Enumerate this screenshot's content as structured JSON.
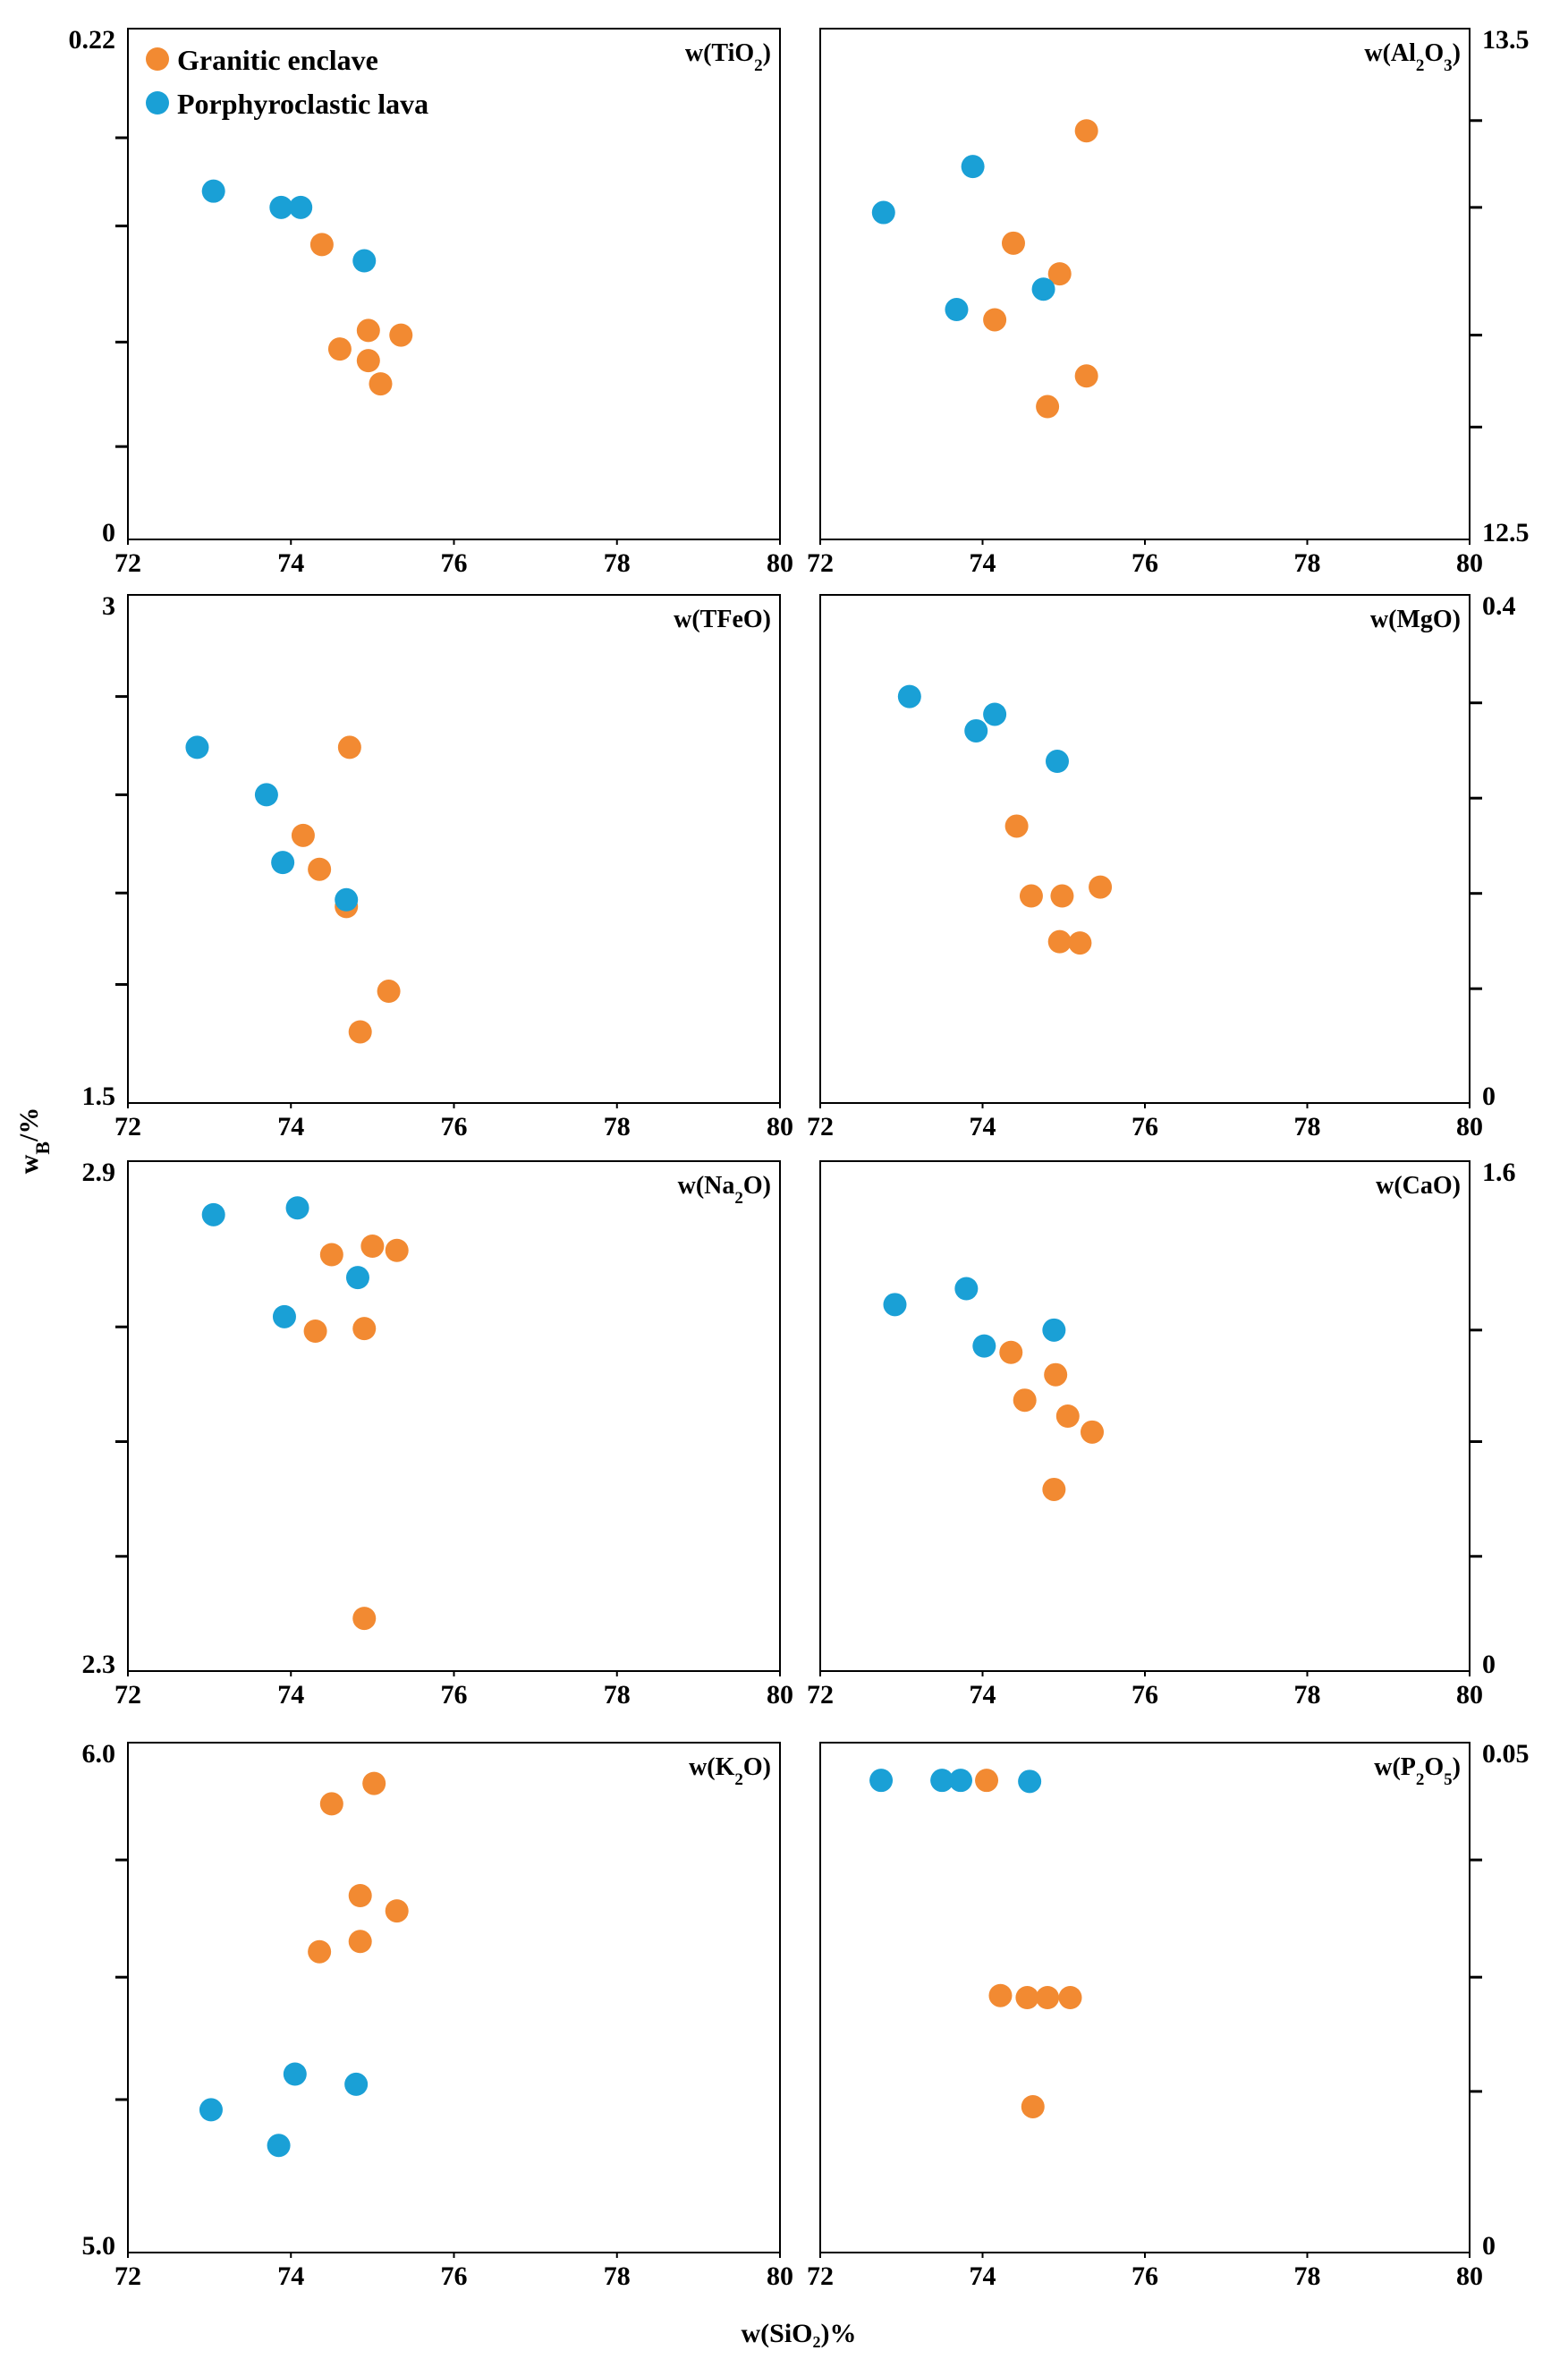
{
  "chart_data": {
    "type": "scatter",
    "title": "",
    "xlabel": "w(SiO₂)%",
    "ylabel": "w_B/%",
    "legend": {
      "placement": "top-left",
      "entries": [
        {
          "name": "Granitic enclave",
          "color": "#f28a32"
        },
        {
          "name": "Porphyroclastic lava",
          "color": "#1aa0d6"
        }
      ]
    },
    "colors": {
      "granitic": "#f28a32",
      "porphyroclastic": "#1aa0d6",
      "axis": "#000000"
    },
    "xlim": [
      72,
      80
    ],
    "x_ticks": [
      72,
      74,
      76,
      78,
      80
    ],
    "x_tick_labels": [
      "72",
      "74",
      "76",
      "78",
      "80"
    ],
    "panels": [
      {
        "id": "tio2",
        "label": "w(TiO",
        "label_sub": "2",
        "label_end": ")",
        "axis_side": "left",
        "ylim": [
          0,
          0.22
        ],
        "y_min_label": "0",
        "y_max_label": "0.22",
        "minor_ticks": [
          0.04,
          0.085,
          0.135,
          0.173
        ],
        "series": [
          {
            "name": "Granitic enclave",
            "points": [
              [
                74.38,
                0.127
              ],
              [
                74.6,
                0.082
              ],
              [
                74.95,
                0.09
              ],
              [
                74.95,
                0.077
              ],
              [
                75.1,
                0.067
              ],
              [
                75.35,
                0.088
              ]
            ]
          },
          {
            "name": "Porphyroclastic lava",
            "points": [
              [
                73.05,
                0.15
              ],
              [
                73.88,
                0.143
              ],
              [
                74.12,
                0.143
              ],
              [
                74.9,
                0.12
              ]
            ]
          }
        ]
      },
      {
        "id": "al2o3",
        "label": "w(Al",
        "label_sub": "2",
        "label_mid": "O",
        "label_sub2": "3",
        "label_end": ")",
        "axis_side": "right",
        "ylim": [
          12.5,
          13.5
        ],
        "y_min_label": "12.5",
        "y_max_label": "13.5",
        "minor_ticks": [
          12.72,
          12.9,
          13.15,
          13.32
        ],
        "series": [
          {
            "name": "Granitic enclave",
            "points": [
              [
                75.28,
                13.3
              ],
              [
                74.38,
                13.08
              ],
              [
                74.95,
                13.02
              ],
              [
                74.15,
                12.93
              ],
              [
                75.28,
                12.82
              ],
              [
                74.8,
                12.76
              ]
            ]
          },
          {
            "name": "Porphyroclastic lava",
            "points": [
              [
                72.78,
                13.14
              ],
              [
                73.88,
                13.23
              ],
              [
                73.68,
                12.95
              ],
              [
                74.75,
                12.99
              ]
            ]
          }
        ]
      },
      {
        "id": "tfeo",
        "label": "w(TFeO)",
        "axis_side": "left",
        "ylim": [
          1.5,
          3
        ],
        "y_min_label": "1.5",
        "y_max_label": "3",
        "minor_ticks": [
          1.85,
          2.12,
          2.41,
          2.7
        ],
        "series": [
          {
            "name": "Granitic enclave",
            "points": [
              [
                74.72,
                2.55
              ],
              [
                74.15,
                2.29
              ],
              [
                74.35,
                2.19
              ],
              [
                74.68,
                2.08
              ],
              [
                75.2,
                1.83
              ],
              [
                74.85,
                1.71
              ]
            ]
          },
          {
            "name": "Porphyroclastic lava",
            "points": [
              [
                72.85,
                2.55
              ],
              [
                73.7,
                2.41
              ],
              [
                73.9,
                2.21
              ],
              [
                74.68,
                2.1
              ]
            ]
          }
        ]
      },
      {
        "id": "mgo",
        "label": "w(MgO)",
        "axis_side": "right",
        "ylim": [
          0,
          0.4
        ],
        "y_min_label": "0",
        "y_max_label": "0.4",
        "minor_ticks": [
          0.09,
          0.165,
          0.24,
          0.315
        ],
        "series": [
          {
            "name": "Granitic enclave",
            "points": [
              [
                74.42,
                0.218
              ],
              [
                74.6,
                0.163
              ],
              [
                74.98,
                0.163
              ],
              [
                75.45,
                0.17
              ],
              [
                74.95,
                0.127
              ],
              [
                75.2,
                0.126
              ]
            ]
          },
          {
            "name": "Porphyroclastic lava",
            "points": [
              [
                73.1,
                0.32
              ],
              [
                73.92,
                0.293
              ],
              [
                74.15,
                0.306
              ],
              [
                74.92,
                0.269
              ]
            ]
          }
        ]
      },
      {
        "id": "na2o",
        "label": "w(Na",
        "label_sub": "2",
        "label_end": "O)",
        "axis_side": "left",
        "ylim": [
          2.3,
          2.9
        ],
        "y_min_label": "2.3",
        "y_max_label": "2.9",
        "minor_ticks": [
          2.435,
          2.57,
          2.705
        ],
        "series": [
          {
            "name": "Granitic enclave",
            "points": [
              [
                74.5,
                2.79
              ],
              [
                75,
                2.8
              ],
              [
                75.3,
                2.795
              ],
              [
                74.3,
                2.7
              ],
              [
                74.9,
                2.703
              ],
              [
                74.9,
                2.362
              ]
            ]
          },
          {
            "name": "Porphyroclastic lava",
            "points": [
              [
                73.05,
                2.837
              ],
              [
                74.08,
                2.845
              ],
              [
                74.82,
                2.763
              ],
              [
                73.92,
                2.717
              ]
            ]
          }
        ]
      },
      {
        "id": "cao",
        "label": "w(CaO)",
        "axis_side": "right",
        "ylim": [
          0,
          1.6
        ],
        "y_min_label": "0",
        "y_max_label": "1.6",
        "minor_ticks": [
          0.36,
          0.72,
          1.07
        ],
        "series": [
          {
            "name": "Granitic enclave",
            "points": [
              [
                74.35,
                1.0
              ],
              [
                74.9,
                0.93
              ],
              [
                74.52,
                0.85
              ],
              [
                75.05,
                0.8
              ],
              [
                75.35,
                0.75
              ],
              [
                74.88,
                0.57
              ]
            ]
          },
          {
            "name": "Porphyroclastic lava",
            "points": [
              [
                72.92,
                1.15
              ],
              [
                73.8,
                1.2
              ],
              [
                74.02,
                1.02
              ],
              [
                74.88,
                1.07
              ]
            ]
          }
        ]
      },
      {
        "id": "k2o",
        "label": "w(K",
        "label_sub": "2",
        "label_end": "O)",
        "axis_side": "left",
        "ylim": [
          5.0,
          6.0
        ],
        "y_min_label": "5.0",
        "y_max_label": "6.0",
        "minor_ticks": [
          5.3,
          5.54,
          5.77
        ],
        "series": [
          {
            "name": "Granitic enclave",
            "points": [
              [
                74.5,
                5.88
              ],
              [
                75.02,
                5.92
              ],
              [
                74.85,
                5.7
              ],
              [
                75.3,
                5.67
              ],
              [
                74.85,
                5.61
              ],
              [
                74.35,
                5.59
              ]
            ]
          },
          {
            "name": "Porphyroclastic lava",
            "points": [
              [
                73.02,
                5.28
              ],
              [
                73.85,
                5.21
              ],
              [
                74.05,
                5.35
              ],
              [
                74.8,
                5.33
              ]
            ]
          }
        ]
      },
      {
        "id": "p2o5",
        "label": "w(P",
        "label_sub": "2",
        "label_mid": "O",
        "label_sub2": "5",
        "label_end": ")",
        "axis_side": "right",
        "ylim": [
          0,
          0.05
        ],
        "y_min_label": "0",
        "y_max_label": "0.05",
        "minor_ticks": [
          0.0158,
          0.027,
          0.0385
        ],
        "series": [
          {
            "name": "Granitic enclave",
            "points": [
              [
                74.05,
                0.0463
              ],
              [
                74.22,
                0.0252
              ],
              [
                74.55,
                0.025
              ],
              [
                74.8,
                0.025
              ],
              [
                75.08,
                0.025
              ],
              [
                74.62,
                0.0143
              ]
            ]
          },
          {
            "name": "Porphyroclastic lava",
            "points": [
              [
                72.75,
                0.0463
              ],
              [
                73.5,
                0.0463
              ],
              [
                73.73,
                0.0463
              ],
              [
                74.58,
                0.0462
              ]
            ]
          }
        ]
      }
    ]
  }
}
